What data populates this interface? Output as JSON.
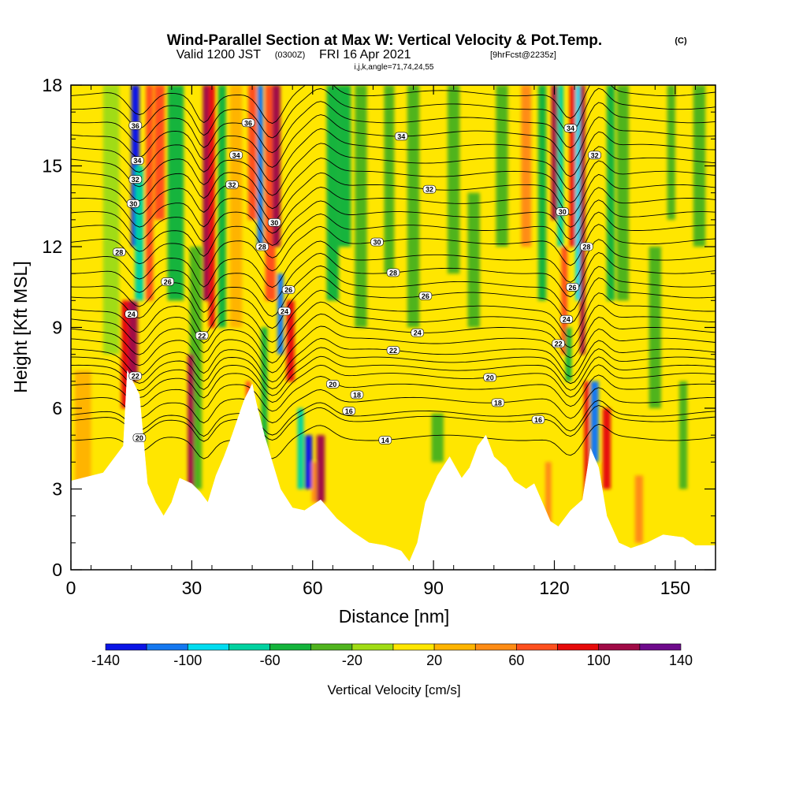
{
  "title": {
    "main": "Wind-Parallel Section at Max W: Vertical Velocity & Pot.Temp.",
    "copyright": "(C)",
    "valid_prefix": "Valid 1200 JST",
    "utc": "(0300Z)",
    "valid_date": "FRI 16 Apr 2021",
    "forecast": "[9hrFcst@2235z]",
    "indices": "i,j,k,angle=71,74,24,55"
  },
  "chart_data": {
    "type": "heatmap",
    "xlabel": "Distance [nm]",
    "ylabel": "Height [Kft MSL]",
    "xlim": [
      0,
      160
    ],
    "ylim": [
      0,
      18
    ],
    "x_ticks": [
      0,
      30,
      60,
      90,
      120,
      150
    ],
    "y_ticks": [
      0,
      3,
      6,
      9,
      12,
      15,
      18
    ],
    "colorbar": {
      "label": "Vertical Velocity [cm/s]",
      "levels": [
        -140,
        -120,
        -100,
        -80,
        -60,
        -40,
        -20,
        0,
        20,
        40,
        60,
        80,
        100,
        120,
        140
      ],
      "tick_labels": [
        "-140",
        "-100",
        "-60",
        "-20",
        "20",
        "60",
        "100",
        "140"
      ],
      "colors": [
        "#0a14e6",
        "#1478f0",
        "#00dcf0",
        "#00d2a0",
        "#14b43c",
        "#50b41e",
        "#a0dc14",
        "#ffe600",
        "#ffb400",
        "#ff8c14",
        "#ff501e",
        "#e60a0a",
        "#a00a46",
        "#6e0a8c"
      ]
    },
    "terrain_kft": [
      [
        0,
        3.3
      ],
      [
        8,
        3.6
      ],
      [
        13,
        4.6
      ],
      [
        14,
        7.4
      ],
      [
        17,
        6.5
      ],
      [
        19,
        3.2
      ],
      [
        21,
        2.5
      ],
      [
        23,
        2.0
      ],
      [
        25,
        2.5
      ],
      [
        27,
        3.4
      ],
      [
        30,
        3.2
      ],
      [
        32,
        2.9
      ],
      [
        34,
        2.5
      ],
      [
        36,
        3.5
      ],
      [
        38,
        4.2
      ],
      [
        40,
        5.0
      ],
      [
        43,
        6.3
      ],
      [
        45,
        6.9
      ],
      [
        46,
        6.2
      ],
      [
        48,
        5.0
      ],
      [
        50,
        4.0
      ],
      [
        52,
        3.0
      ],
      [
        55,
        2.3
      ],
      [
        58,
        2.2
      ],
      [
        62,
        2.6
      ],
      [
        66,
        1.9
      ],
      [
        70,
        1.4
      ],
      [
        74,
        1.0
      ],
      [
        78,
        0.9
      ],
      [
        82,
        0.7
      ],
      [
        84,
        0.3
      ],
      [
        86,
        1.0
      ],
      [
        88,
        2.5
      ],
      [
        91,
        3.5
      ],
      [
        94,
        4.2
      ],
      [
        97,
        3.4
      ],
      [
        99,
        3.8
      ],
      [
        101,
        4.6
      ],
      [
        103,
        5.0
      ],
      [
        105,
        4.2
      ],
      [
        108,
        3.8
      ],
      [
        110,
        3.3
      ],
      [
        113,
        3.0
      ],
      [
        115,
        3.2
      ],
      [
        117,
        2.5
      ],
      [
        119,
        1.8
      ],
      [
        121,
        1.6
      ],
      [
        124,
        2.2
      ],
      [
        127,
        2.6
      ],
      [
        129,
        4.5
      ],
      [
        131,
        3.8
      ],
      [
        133,
        2.0
      ],
      [
        136,
        1.0
      ],
      [
        139,
        0.8
      ],
      [
        143,
        1.0
      ],
      [
        147,
        1.3
      ],
      [
        152,
        1.2
      ],
      [
        155,
        0.9
      ],
      [
        160,
        0.9
      ]
    ],
    "bands": [
      {
        "x": 3,
        "w": 4,
        "v": 30,
        "top": 7.4,
        "bot": 3
      },
      {
        "x": 10,
        "w": 4,
        "v": -10,
        "top": 18,
        "bot": 8
      },
      {
        "x": 13.5,
        "w": 2,
        "v": 80,
        "top": 10,
        "bot": 6
      },
      {
        "x": 15.5,
        "w": 2.2,
        "v": 105,
        "top": 10,
        "bot": 7
      },
      {
        "x": 16,
        "w": 2,
        "v": -130,
        "top": 18,
        "bot": 12
      },
      {
        "x": 17,
        "w": 2.2,
        "v": -80,
        "top": 15,
        "bot": 10
      },
      {
        "x": 19.5,
        "w": 1.8,
        "v": 60,
        "top": 18,
        "bot": 10
      },
      {
        "x": 22,
        "w": 2.5,
        "v": 70,
        "top": 18,
        "bot": 13
      },
      {
        "x": 26,
        "w": 4,
        "v": -50,
        "top": 18,
        "bot": 10
      },
      {
        "x": 31,
        "w": 3,
        "v": -30,
        "top": 12,
        "bot": 3
      },
      {
        "x": 29.8,
        "w": 1.6,
        "v": 110,
        "top": 8,
        "bot": 3
      },
      {
        "x": 33.5,
        "w": 1.5,
        "v": 110,
        "top": 18,
        "bot": 10
      },
      {
        "x": 35,
        "w": 1.5,
        "v": 80,
        "top": 18,
        "bot": 9
      },
      {
        "x": 37.5,
        "w": 2,
        "v": -45,
        "top": 18,
        "bot": 9
      },
      {
        "x": 41,
        "w": 3,
        "v": 20,
        "top": 18,
        "bot": 9
      },
      {
        "x": 44,
        "w": 1.2,
        "v": 70,
        "top": 7,
        "bot": 3
      },
      {
        "x": 45,
        "w": 2,
        "v": 60,
        "top": 18,
        "bot": 13
      },
      {
        "x": 47,
        "w": 1.5,
        "v": -110,
        "top": 18,
        "bot": 12
      },
      {
        "x": 49.5,
        "w": 2.5,
        "v": 70,
        "top": 18,
        "bot": 10
      },
      {
        "x": 48,
        "w": 1.5,
        "v": -50,
        "top": 9,
        "bot": 3
      },
      {
        "x": 51,
        "w": 2,
        "v": 105,
        "top": 18,
        "bot": 12
      },
      {
        "x": 52,
        "w": 1.5,
        "v": -120,
        "top": 11,
        "bot": 8
      },
      {
        "x": 54.5,
        "w": 2,
        "v": 90,
        "top": 10,
        "bot": 7
      },
      {
        "x": 57,
        "w": 1.5,
        "v": -70,
        "top": 6,
        "bot": 3
      },
      {
        "x": 59,
        "w": 1.8,
        "v": -130,
        "top": 5,
        "bot": 3
      },
      {
        "x": 60.5,
        "w": 1.5,
        "v": 40,
        "top": 4,
        "bot": 2.5
      },
      {
        "x": 62,
        "w": 2,
        "v": 100,
        "top": 5,
        "bot": 2.5
      },
      {
        "x": 65,
        "w": 3,
        "v": -50,
        "top": 18,
        "bot": 10
      },
      {
        "x": 68,
        "w": 3,
        "v": -50,
        "top": 18,
        "bot": 12
      },
      {
        "x": 72,
        "w": 3,
        "v": -30,
        "top": 18,
        "bot": 9
      },
      {
        "x": 79,
        "w": 2.5,
        "v": -40,
        "top": 18,
        "bot": 11
      },
      {
        "x": 85,
        "w": 3,
        "v": -30,
        "top": 18,
        "bot": 9
      },
      {
        "x": 91,
        "w": 3,
        "v": -40,
        "top": 5.8,
        "bot": 4
      },
      {
        "x": 95,
        "w": 3,
        "v": -30,
        "top": 18,
        "bot": 11
      },
      {
        "x": 100,
        "w": 3,
        "v": -40,
        "top": 14,
        "bot": 9
      },
      {
        "x": 107,
        "w": 3,
        "v": -25,
        "top": 18,
        "bot": 12
      },
      {
        "x": 113,
        "w": 2.5,
        "v": 40,
        "top": 18,
        "bot": 12
      },
      {
        "x": 117,
        "w": 2,
        "v": -50,
        "top": 18,
        "bot": 10
      },
      {
        "x": 118.5,
        "w": 1.5,
        "v": 50,
        "top": 4,
        "bot": 1.5
      },
      {
        "x": 120,
        "w": 1.5,
        "v": 100,
        "top": 18,
        "bot": 13
      },
      {
        "x": 121.5,
        "w": 1.5,
        "v": -70,
        "top": 18,
        "bot": 12
      },
      {
        "x": 122.5,
        "w": 1.5,
        "v": 70,
        "top": 12,
        "bot": 8
      },
      {
        "x": 123.5,
        "w": 1.5,
        "v": -45,
        "top": 9,
        "bot": 7
      },
      {
        "x": 124.5,
        "w": 1.4,
        "v": 90,
        "top": 18,
        "bot": 12
      },
      {
        "x": 126,
        "w": 1.5,
        "v": -90,
        "top": 18,
        "bot": 10
      },
      {
        "x": 127,
        "w": 1.2,
        "v": 110,
        "top": 18,
        "bot": 8
      },
      {
        "x": 128,
        "w": 1.2,
        "v": 80,
        "top": 7,
        "bot": 2.5
      },
      {
        "x": 130,
        "w": 2,
        "v": -120,
        "top": 7,
        "bot": 4
      },
      {
        "x": 133,
        "w": 2,
        "v": 90,
        "top": 6,
        "bot": 3
      },
      {
        "x": 134,
        "w": 2,
        "v": -50,
        "top": 18,
        "bot": 10
      },
      {
        "x": 137,
        "w": 3,
        "v": -40,
        "top": 18,
        "bot": 10
      },
      {
        "x": 141,
        "w": 2,
        "v": 50,
        "top": 3.5,
        "bot": 1
      },
      {
        "x": 145,
        "w": 3,
        "v": -40,
        "top": 12,
        "bot": 6
      },
      {
        "x": 149,
        "w": 2,
        "v": -40,
        "top": 18,
        "bot": 13
      },
      {
        "x": 152,
        "w": 2,
        "v": -30,
        "top": 7,
        "bot": 3
      },
      {
        "x": 156,
        "w": 3,
        "v": -30,
        "top": 18,
        "bot": 12
      }
    ],
    "isentropes": [
      {
        "base": 4.9,
        "label": "14",
        "lx": 78
      },
      {
        "base": 5.6,
        "label": "16",
        "lx": 116
      },
      {
        "base": 5.8,
        "label": "16"
      },
      {
        "base": 6.3,
        "label": "18",
        "lx": 106
      },
      {
        "base": 6.8,
        "label": "18"
      },
      {
        "base": 7.2,
        "label": "20",
        "lx": 104
      },
      {
        "base": 7.5,
        "label": "20"
      },
      {
        "base": 7.8
      },
      {
        "base": 8.1,
        "label": "22",
        "lx": 80
      },
      {
        "base": 8.5
      },
      {
        "base": 8.9,
        "label": "24",
        "lx": 86
      },
      {
        "base": 9.3
      },
      {
        "base": 9.7
      },
      {
        "base": 10.2,
        "label": "26",
        "lx": 88
      },
      {
        "base": 10.6
      },
      {
        "base": 11.1,
        "label": "28",
        "lx": 80
      },
      {
        "base": 11.6
      },
      {
        "base": 12.2,
        "label": "30",
        "lx": 76
      },
      {
        "base": 12.7
      },
      {
        "base": 13.2
      },
      {
        "base": 13.7
      },
      {
        "base": 14.2,
        "label": "32",
        "lx": 89
      },
      {
        "base": 14.7
      },
      {
        "base": 15.2
      },
      {
        "base": 15.7
      },
      {
        "base": 16.2,
        "label": "34",
        "lx": 82
      },
      {
        "base": 16.7
      },
      {
        "base": 17.2
      },
      {
        "base": 17.7
      }
    ],
    "disturbances": [
      {
        "c": 17,
        "a": -0.9,
        "s": 4
      },
      {
        "c": 33,
        "a": -1.0,
        "s": 3
      },
      {
        "c": 50,
        "a": -1.2,
        "s": 4
      },
      {
        "c": 62,
        "a": 0.6,
        "s": 4
      },
      {
        "c": 124,
        "a": -1.0,
        "s": 3.5
      },
      {
        "c": 131,
        "a": 0.6,
        "s": 3
      }
    ],
    "contour_labels": [
      {
        "x": 16,
        "y": 16.5,
        "t": "36"
      },
      {
        "x": 16.5,
        "y": 15.2,
        "t": "34"
      },
      {
        "x": 16,
        "y": 14.5,
        "t": "32"
      },
      {
        "x": 15.5,
        "y": 13.6,
        "t": "30"
      },
      {
        "x": 12,
        "y": 11.8,
        "t": "28"
      },
      {
        "x": 24,
        "y": 10.7,
        "t": "26"
      },
      {
        "x": 15,
        "y": 9.5,
        "t": "24"
      },
      {
        "x": 32.5,
        "y": 8.7,
        "t": "22"
      },
      {
        "x": 16,
        "y": 7.2,
        "t": "22"
      },
      {
        "x": 17,
        "y": 4.9,
        "t": "20"
      },
      {
        "x": 44,
        "y": 16.6,
        "t": "36"
      },
      {
        "x": 41,
        "y": 15.4,
        "t": "34"
      },
      {
        "x": 40,
        "y": 14.3,
        "t": "32"
      },
      {
        "x": 50.5,
        "y": 12.9,
        "t": "30"
      },
      {
        "x": 47.5,
        "y": 12.0,
        "t": "28"
      },
      {
        "x": 54,
        "y": 10.4,
        "t": "26"
      },
      {
        "x": 53,
        "y": 9.6,
        "t": "24"
      },
      {
        "x": 65,
        "y": 6.9,
        "t": "20"
      },
      {
        "x": 71,
        "y": 6.5,
        "t": "18"
      },
      {
        "x": 69,
        "y": 5.9,
        "t": "16"
      },
      {
        "x": 124,
        "y": 16.4,
        "t": "34"
      },
      {
        "x": 130,
        "y": 15.4,
        "t": "32"
      },
      {
        "x": 122,
        "y": 13.3,
        "t": "30"
      },
      {
        "x": 128,
        "y": 12.0,
        "t": "28"
      },
      {
        "x": 124.5,
        "y": 10.5,
        "t": "26"
      },
      {
        "x": 123,
        "y": 9.3,
        "t": "24"
      },
      {
        "x": 121,
        "y": 8.4,
        "t": "22"
      }
    ]
  }
}
